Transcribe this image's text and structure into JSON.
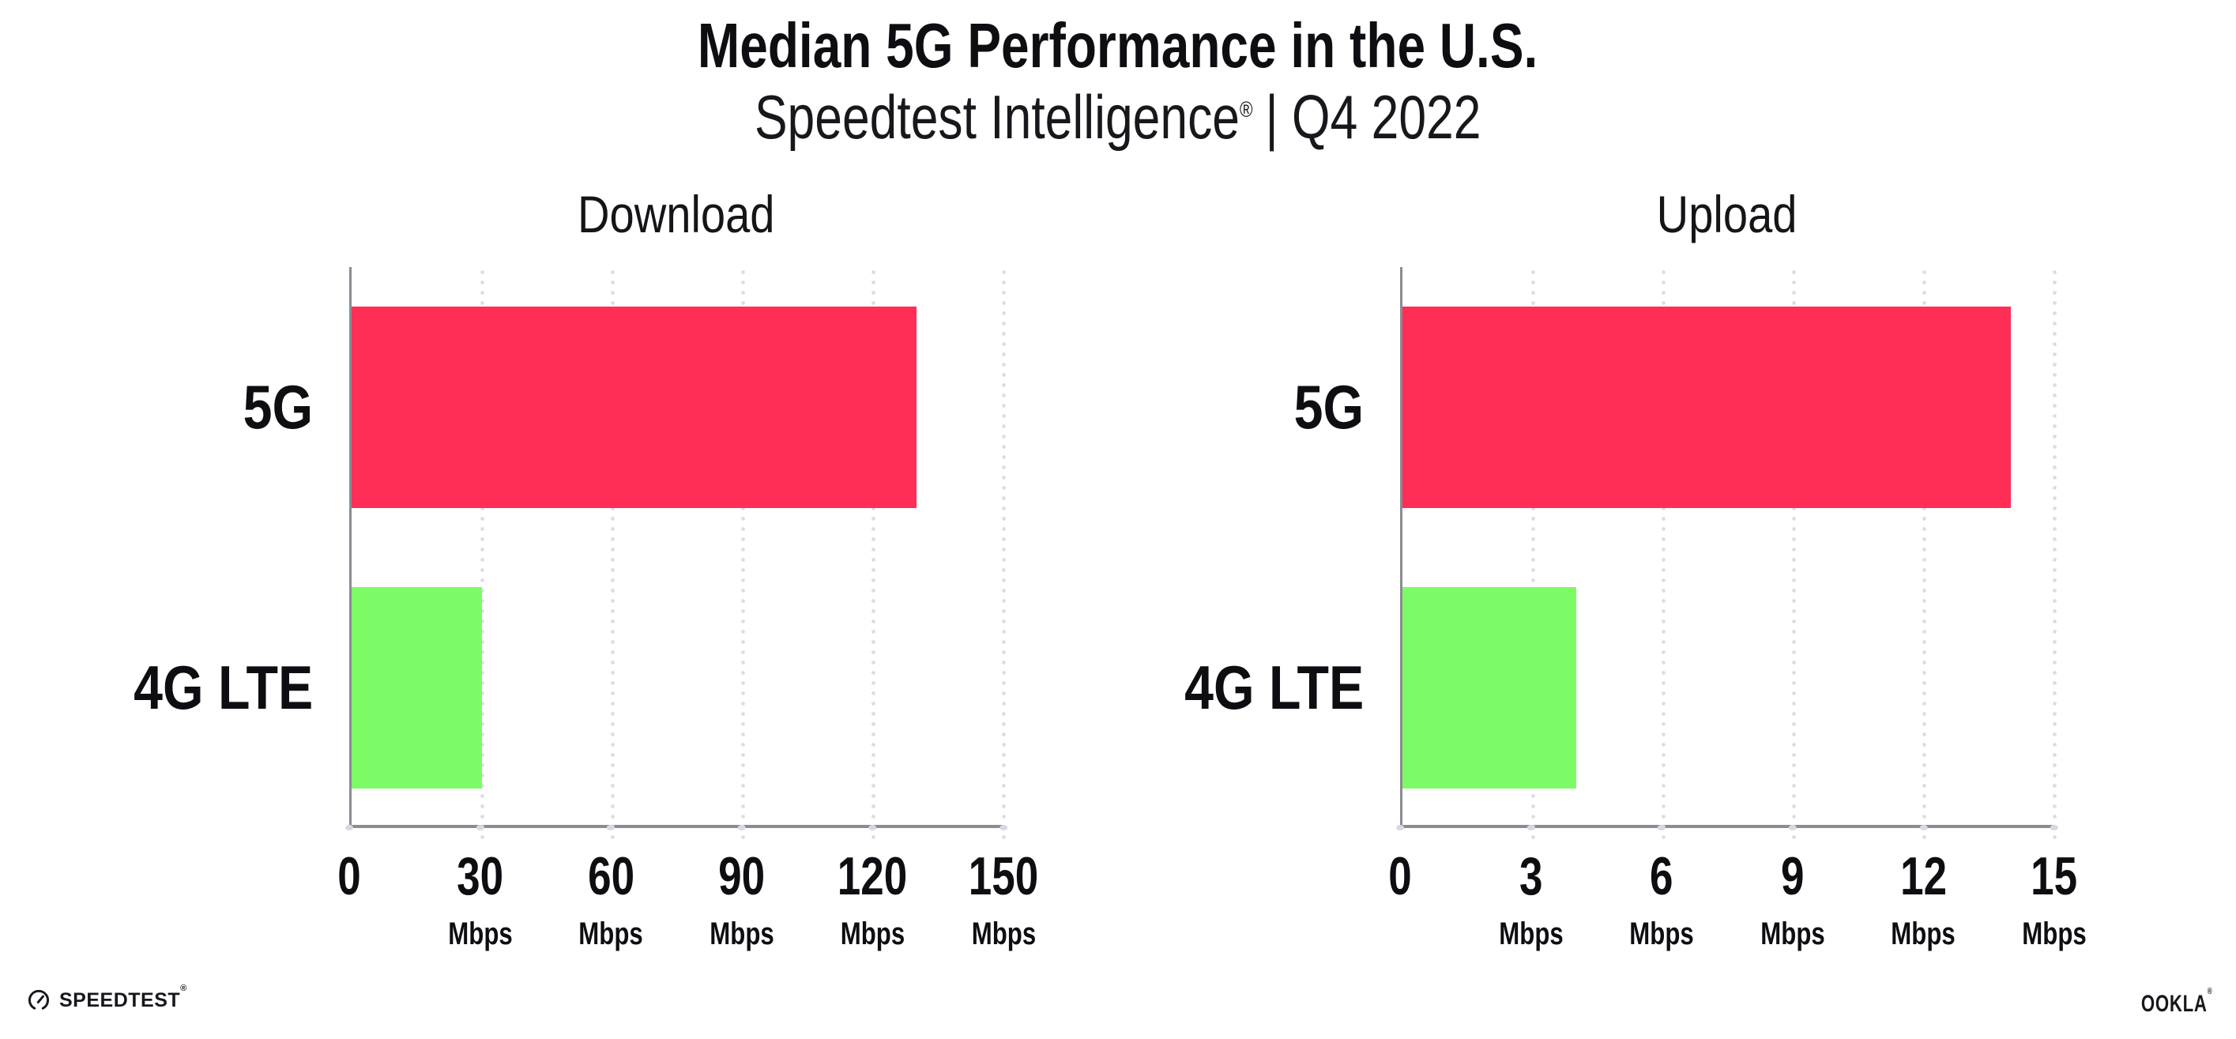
{
  "header": {
    "title": "Median 5G Performance in the U.S.",
    "subtitle_brand": "Speedtest Intelligence",
    "subtitle_reg": "®",
    "subtitle_rest": "| Q4 2022"
  },
  "chart_data": [
    {
      "type": "bar",
      "orientation": "horizontal",
      "title": "Download",
      "categories": [
        "5G",
        "4G LTE"
      ],
      "values": [
        130,
        30
      ],
      "unit": "Mbps",
      "xlabel": "",
      "ylabel": "",
      "xlim": [
        0,
        150
      ],
      "ticks": [
        0,
        30,
        60,
        90,
        120,
        150
      ],
      "bar_colors": [
        "#ff2e56",
        "#7dfb67"
      ],
      "grid": "vertical-dotted",
      "legend": "none"
    },
    {
      "type": "bar",
      "orientation": "horizontal",
      "title": "Upload",
      "categories": [
        "5G",
        "4G LTE"
      ],
      "values": [
        14,
        4
      ],
      "unit": "Mbps",
      "xlabel": "",
      "ylabel": "",
      "xlim": [
        0,
        15
      ],
      "ticks": [
        0,
        3,
        6,
        9,
        12,
        15
      ],
      "bar_colors": [
        "#ff2e56",
        "#7dfb67"
      ],
      "grid": "vertical-dotted",
      "legend": "none"
    }
  ],
  "colors": {
    "bar_5g": "#ff2e56",
    "bar_4g_lte": "#7dfb67",
    "axis": "#8b8b93",
    "gridline": "#dcdce6",
    "text": "#121217"
  },
  "footer": {
    "speedtest_label": "SPEEDTEST",
    "speedtest_reg": "®",
    "ookla_label": "OOKLA",
    "ookla_reg": "®"
  }
}
